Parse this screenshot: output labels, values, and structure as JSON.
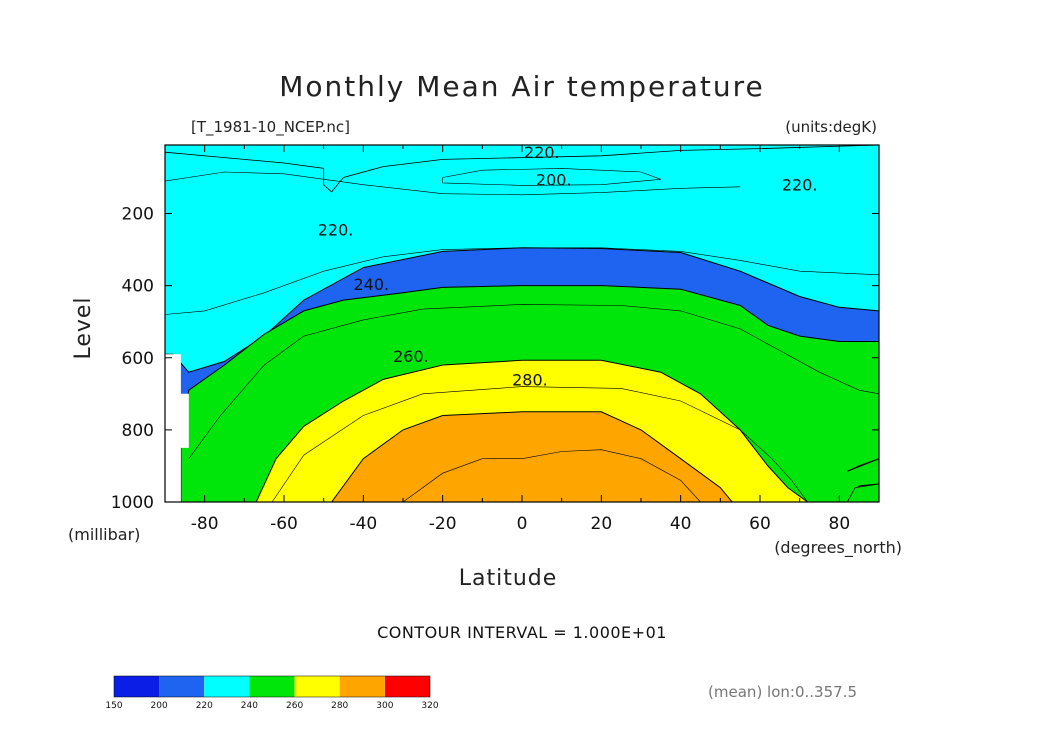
{
  "chart_data": {
    "type": "contour",
    "title": "Monthly Mean Air temperature",
    "file_label": "[T_1981-10_NCEP.nc]",
    "units_label": "(units:degK)",
    "xlabel": "Latitude",
    "x_units": "(degrees_north)",
    "ylabel": "Level",
    "y_units": "(millibar)",
    "xlim": [
      -90,
      90
    ],
    "ylim": [
      1000,
      10
    ],
    "x_ticks": [
      -80,
      -60,
      -40,
      -20,
      0,
      20,
      40,
      60,
      80
    ],
    "y_ticks": [
      200,
      400,
      600,
      800,
      1000
    ],
    "contour_interval_text": "CONTOUR INTERVAL = 1.000E+01",
    "averaging_note": "(mean) lon:0..357.5",
    "fill_levels": [
      150,
      200,
      220,
      240,
      260,
      280,
      300,
      320
    ],
    "fill_colors": [
      "#0a1ee6",
      "#1e64f0",
      "#00ffff",
      "#00e60a",
      "#ffff00",
      "#ffa500",
      "#ff0000"
    ],
    "colorbar_labels": [
      "150",
      "200",
      "220",
      "240",
      "260",
      "280",
      "300",
      "320"
    ],
    "contour_labels": [
      {
        "text": "220.",
        "lat": 5,
        "lev": 30
      },
      {
        "text": "200.",
        "lat": 8,
        "lev": 105
      },
      {
        "text": "220.",
        "lat": 70,
        "lev": 120
      },
      {
        "text": "220.",
        "lat": -47,
        "lev": 245
      },
      {
        "text": "240.",
        "lat": -38,
        "lev": 395
      },
      {
        "text": "260.",
        "lat": -28,
        "lev": 595
      },
      {
        "text": "280.",
        "lat": 2,
        "lev": 660
      }
    ],
    "bands": [
      {
        "level": 200,
        "color_index": 1,
        "boundary": [
          [
            -90,
            10
          ],
          [
            -90,
            300
          ],
          [
            -80,
            312
          ],
          [
            -70,
            290
          ],
          [
            -60,
            250
          ],
          [
            -50,
            228
          ],
          [
            -40,
            212
          ],
          [
            -20,
            200
          ],
          [
            0,
            198
          ],
          [
            20,
            197
          ],
          [
            40,
            198
          ],
          [
            55,
            205
          ],
          [
            60,
            190
          ],
          [
            65,
            180
          ],
          [
            72,
            178
          ],
          [
            77,
            170
          ],
          [
            82,
            157
          ],
          [
            72,
            136
          ],
          [
            65,
            130
          ],
          [
            60,
            140
          ],
          [
            59,
            175
          ],
          [
            65,
            245
          ],
          [
            75,
            262
          ],
          [
            90,
            270
          ],
          [
            90,
            10
          ]
        ]
      },
      {
        "level": 220,
        "color_index": 2,
        "boundary": [
          [
            -90,
            10
          ],
          [
            -90,
            590
          ],
          [
            -88,
            590
          ],
          [
            -84,
            640
          ],
          [
            -75,
            610
          ],
          [
            -65,
            540
          ],
          [
            -55,
            440
          ],
          [
            -40,
            350
          ],
          [
            -20,
            305
          ],
          [
            0,
            295
          ],
          [
            20,
            297
          ],
          [
            40,
            308
          ],
          [
            55,
            360
          ],
          [
            70,
            430
          ],
          [
            80,
            460
          ],
          [
            90,
            470
          ],
          [
            90,
            10
          ]
        ]
      },
      {
        "level": 240,
        "color_index": 3,
        "boundary": [
          [
            -86,
            1000
          ],
          [
            -86,
            820
          ],
          [
            -84,
            690
          ],
          [
            -75,
            620
          ],
          [
            -65,
            535
          ],
          [
            -55,
            470
          ],
          [
            -45,
            440
          ],
          [
            -30,
            420
          ],
          [
            -20,
            405
          ],
          [
            0,
            400
          ],
          [
            20,
            400
          ],
          [
            40,
            410
          ],
          [
            55,
            455
          ],
          [
            62,
            510
          ],
          [
            70,
            540
          ],
          [
            80,
            555
          ],
          [
            90,
            555
          ],
          [
            90,
            880
          ],
          [
            85,
            900
          ],
          [
            82,
            915
          ],
          [
            90,
            880
          ],
          [
            90,
            950
          ],
          [
            85,
            955
          ],
          [
            83,
            1000
          ]
        ]
      },
      {
        "level": 260,
        "color_index": 4,
        "boundary": [
          [
            -67,
            1000
          ],
          [
            -62,
            880
          ],
          [
            -55,
            790
          ],
          [
            -45,
            720
          ],
          [
            -35,
            660
          ],
          [
            -20,
            620
          ],
          [
            0,
            607
          ],
          [
            20,
            607
          ],
          [
            35,
            640
          ],
          [
            45,
            700
          ],
          [
            55,
            800
          ],
          [
            62,
            900
          ],
          [
            67,
            960
          ],
          [
            72,
            1000
          ]
        ]
      },
      {
        "level": 280,
        "color_index": 5,
        "boundary": [
          [
            -48,
            1000
          ],
          [
            -40,
            880
          ],
          [
            -30,
            800
          ],
          [
            -20,
            760
          ],
          [
            0,
            750
          ],
          [
            20,
            750
          ],
          [
            30,
            800
          ],
          [
            40,
            880
          ],
          [
            50,
            960
          ],
          [
            53,
            1000
          ]
        ]
      }
    ],
    "lines": [
      {
        "level": 210,
        "points": [
          [
            -90,
            110
          ],
          [
            -75,
            85
          ],
          [
            -60,
            90
          ],
          [
            -40,
            120
          ],
          [
            -20,
            145
          ],
          [
            0,
            148
          ],
          [
            20,
            142
          ],
          [
            40,
            130
          ],
          [
            55,
            126
          ]
        ]
      },
      {
        "level": 210,
        "points": [
          [
            -20,
            100
          ],
          [
            -10,
            80
          ],
          [
            10,
            75
          ],
          [
            30,
            85
          ],
          [
            35,
            105
          ],
          [
            20,
            120
          ],
          [
            0,
            122
          ],
          [
            -20,
            115
          ],
          [
            -20,
            100
          ]
        ]
      },
      {
        "level": 230,
        "points": [
          [
            -90,
            480
          ],
          [
            -80,
            470
          ],
          [
            -65,
            420
          ],
          [
            -50,
            360
          ],
          [
            -35,
            320
          ],
          [
            -20,
            300
          ],
          [
            0,
            295
          ],
          [
            20,
            295
          ],
          [
            40,
            305
          ],
          [
            55,
            330
          ],
          [
            70,
            360
          ],
          [
            90,
            370
          ]
        ]
      },
      {
        "level": 250,
        "points": [
          [
            -84,
            880
          ],
          [
            -76,
            760
          ],
          [
            -65,
            620
          ],
          [
            -55,
            540
          ],
          [
            -40,
            495
          ],
          [
            -25,
            465
          ],
          [
            0,
            452
          ],
          [
            25,
            455
          ],
          [
            40,
            470
          ],
          [
            55,
            520
          ],
          [
            65,
            580
          ],
          [
            75,
            640
          ],
          [
            85,
            690
          ],
          [
            90,
            700
          ]
        ]
      },
      {
        "level": 270,
        "points": [
          [
            -63,
            1000
          ],
          [
            -55,
            870
          ],
          [
            -40,
            760
          ],
          [
            -25,
            700
          ],
          [
            0,
            680
          ],
          [
            25,
            685
          ],
          [
            40,
            720
          ],
          [
            55,
            800
          ],
          [
            63,
            880
          ],
          [
            68,
            940
          ],
          [
            72,
            1000
          ]
        ]
      },
      {
        "level": 290,
        "points": [
          [
            -30,
            1000
          ],
          [
            -20,
            920
          ],
          [
            -10,
            880
          ],
          [
            0,
            880
          ],
          [
            10,
            860
          ],
          [
            20,
            855
          ],
          [
            30,
            880
          ],
          [
            40,
            940
          ],
          [
            45,
            1000
          ]
        ]
      }
    ]
  }
}
